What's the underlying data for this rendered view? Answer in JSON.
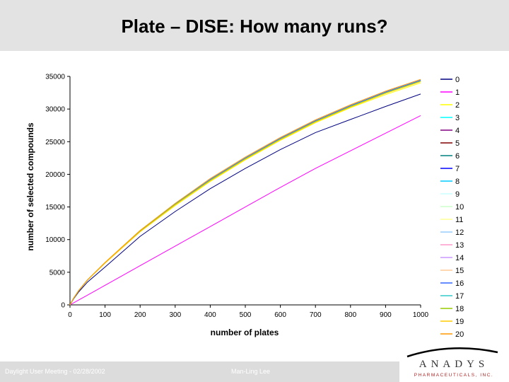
{
  "slide": {
    "title": "Plate – DISE: How many runs?",
    "footer_left": "Daylight User Meeting - 02/28/2002",
    "footer_center": "Man-Ling Lee",
    "logo_text": "ANADYS",
    "logo_subtext": "PHARMACEUTICALS, INC."
  },
  "chart_data": {
    "type": "line",
    "xlabel": "number of plates",
    "ylabel": "number of selected compounds",
    "xlim": [
      0,
      1000
    ],
    "ylim": [
      0,
      35000
    ],
    "x_ticks": [
      0,
      100,
      200,
      300,
      400,
      500,
      600,
      700,
      800,
      900,
      1000
    ],
    "y_ticks": [
      0,
      5000,
      10000,
      15000,
      20000,
      25000,
      30000,
      35000
    ],
    "grid": false,
    "legend_position": "right",
    "x": [
      0,
      10,
      25,
      50,
      100,
      200,
      300,
      400,
      500,
      600,
      700,
      800,
      900,
      1000
    ],
    "series": [
      {
        "name": "0",
        "color": "#000080",
        "values": [
          0,
          900,
          2000,
          3500,
          5800,
          10500,
          14300,
          17800,
          20900,
          23800,
          26400,
          28400,
          30400,
          32300
        ]
      },
      {
        "name": "1",
        "color": "#ff00ff",
        "values": [
          0,
          300,
          750,
          1500,
          3000,
          6000,
          9000,
          12000,
          15000,
          18000,
          20900,
          23600,
          26300,
          29000
        ]
      },
      {
        "name": "2",
        "color": "#ffff00",
        "values": [
          0,
          1000,
          2200,
          3800,
          6400,
          11200,
          15200,
          18900,
          22200,
          25200,
          27900,
          30200,
          32200,
          34000
        ]
      },
      {
        "name": "3",
        "color": "#00ffff",
        "values": [
          0,
          1000,
          2200,
          3800,
          6450,
          11300,
          15400,
          19100,
          22400,
          25400,
          28100,
          30400,
          32500,
          34300
        ]
      },
      {
        "name": "4",
        "color": "#800080",
        "values": [
          0,
          1000,
          2200,
          3800,
          6450,
          11300,
          15400,
          19150,
          22450,
          25450,
          28150,
          30450,
          32550,
          34350
        ]
      },
      {
        "name": "5",
        "color": "#800000",
        "values": [
          0,
          1000,
          2200,
          3800,
          6450,
          11300,
          15450,
          19200,
          22500,
          25500,
          28200,
          30500,
          32600,
          34400
        ]
      },
      {
        "name": "6",
        "color": "#008080",
        "values": [
          0,
          1000,
          2200,
          3800,
          6450,
          11300,
          15400,
          19100,
          22400,
          25400,
          28100,
          30400,
          32500,
          34300
        ]
      },
      {
        "name": "7",
        "color": "#0000ff",
        "values": [
          0,
          1000,
          2200,
          3800,
          6450,
          11300,
          15450,
          19200,
          22500,
          25500,
          28200,
          30500,
          32600,
          34400
        ]
      },
      {
        "name": "8",
        "color": "#00ccff",
        "values": [
          0,
          1000,
          2200,
          3800,
          6450,
          11300,
          15400,
          19100,
          22400,
          25400,
          28100,
          30400,
          32500,
          34300
        ]
      },
      {
        "name": "9",
        "color": "#ccffff",
        "values": [
          0,
          1000,
          2200,
          3800,
          6400,
          11250,
          15350,
          19050,
          22350,
          25350,
          28050,
          30350,
          32450,
          34250
        ]
      },
      {
        "name": "10",
        "color": "#ccffcc",
        "values": [
          0,
          1000,
          2200,
          3800,
          6400,
          11250,
          15350,
          19050,
          22350,
          25350,
          28050,
          30350,
          32450,
          34250
        ]
      },
      {
        "name": "11",
        "color": "#ffff99",
        "values": [
          0,
          1000,
          2200,
          3800,
          6400,
          11200,
          15300,
          19000,
          22300,
          25300,
          28000,
          30300,
          32400,
          34200
        ]
      },
      {
        "name": "12",
        "color": "#99ccff",
        "values": [
          0,
          1000,
          2200,
          3800,
          6450,
          11300,
          15400,
          19100,
          22400,
          25400,
          28100,
          30400,
          32500,
          34300
        ]
      },
      {
        "name": "13",
        "color": "#ff99cc",
        "values": [
          0,
          1000,
          2200,
          3800,
          6450,
          11300,
          15400,
          19100,
          22400,
          25400,
          28100,
          30400,
          32500,
          34300
        ]
      },
      {
        "name": "14",
        "color": "#cc99ff",
        "values": [
          0,
          1000,
          2200,
          3800,
          6450,
          11300,
          15400,
          19100,
          22400,
          25400,
          28100,
          30400,
          32500,
          34300
        ]
      },
      {
        "name": "15",
        "color": "#ffcc99",
        "values": [
          0,
          1000,
          2200,
          3800,
          6500,
          11400,
          15500,
          19300,
          22600,
          25600,
          28300,
          30600,
          32700,
          34500
        ]
      },
      {
        "name": "16",
        "color": "#3366ff",
        "values": [
          0,
          1000,
          2200,
          3800,
          6450,
          11300,
          15450,
          19200,
          22500,
          25500,
          28200,
          30500,
          32600,
          34400
        ]
      },
      {
        "name": "17",
        "color": "#33cccc",
        "values": [
          0,
          1000,
          2200,
          3800,
          6450,
          11300,
          15400,
          19100,
          22400,
          25400,
          28100,
          30400,
          32500,
          34300
        ]
      },
      {
        "name": "18",
        "color": "#99cc00",
        "values": [
          0,
          1000,
          2200,
          3800,
          6400,
          11250,
          15350,
          19050,
          22350,
          25350,
          28050,
          30350,
          32450,
          34250
        ]
      },
      {
        "name": "19",
        "color": "#ffcc00",
        "values": [
          0,
          1000,
          2200,
          3800,
          6400,
          11200,
          15300,
          19000,
          22300,
          25300,
          28000,
          30300,
          32400,
          34200
        ]
      },
      {
        "name": "20",
        "color": "#ff9900",
        "values": [
          0,
          1000,
          2200,
          3850,
          6500,
          11400,
          15550,
          19350,
          22650,
          25650,
          28350,
          30650,
          32750,
          34550
        ]
      }
    ]
  }
}
